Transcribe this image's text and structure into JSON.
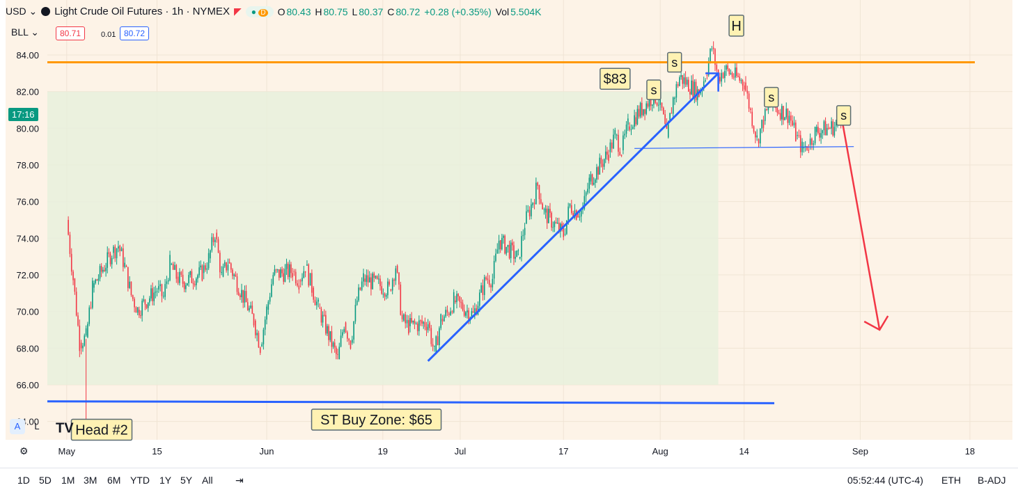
{
  "header": {
    "currency": "USD",
    "symbol_title": "Light Crude Oil Futures · 1h · NYMEX",
    "ohlc": {
      "o": "80.43",
      "h": "80.75",
      "l": "80.37",
      "c": "80.72",
      "chg": "+0.28 (+0.35%)",
      "vol": "5.504K"
    },
    "labels": {
      "o": "O",
      "h": "H",
      "l": "L",
      "c": "C",
      "vol": "Vol"
    },
    "dot_label": "D",
    "bll": "BLL",
    "sell": "80.71",
    "spread": "0.01",
    "buy": "80.72"
  },
  "price_badge": "17:16",
  "chart_data": {
    "type": "line",
    "title": "Light Crude Oil Futures · 1h · NYMEX",
    "xlabel": "",
    "ylabel": "",
    "ylim": [
      63.0,
      87.0
    ],
    "y_ticks": [
      "84.00",
      "82.00",
      "80.00",
      "78.00",
      "76.00",
      "74.00",
      "72.00",
      "70.00",
      "68.00",
      "66.00",
      "64.00"
    ],
    "x_ticks": [
      "May",
      "15",
      "Jun",
      "19",
      "Jul",
      "17",
      "Aug",
      "14",
      "Sep",
      "18"
    ],
    "series": [
      {
        "name": "",
        "values": [
          {
            "d": "2023-05-01",
            "v": 75.0
          },
          {
            "d": "2023-05-02",
            "v": 71.8
          },
          {
            "d": "2023-05-03",
            "v": 68.3
          },
          {
            "d": "2023-05-04",
            "v": 68.6
          },
          {
            "d": "2023-05-05",
            "v": 71.3
          },
          {
            "d": "2023-05-08",
            "v": 73.2
          },
          {
            "d": "2023-05-09",
            "v": 73.6
          },
          {
            "d": "2023-05-10",
            "v": 72.5
          },
          {
            "d": "2023-05-11",
            "v": 70.9
          },
          {
            "d": "2023-05-12",
            "v": 70.1
          },
          {
            "d": "2023-05-15",
            "v": 71.2
          },
          {
            "d": "2023-05-16",
            "v": 70.8
          },
          {
            "d": "2023-05-17",
            "v": 72.6
          },
          {
            "d": "2023-05-18",
            "v": 71.9
          },
          {
            "d": "2023-05-19",
            "v": 71.6
          },
          {
            "d": "2023-05-22",
            "v": 72.1
          },
          {
            "d": "2023-05-23",
            "v": 72.9
          },
          {
            "d": "2023-05-24",
            "v": 74.3
          },
          {
            "d": "2023-05-25",
            "v": 71.9
          },
          {
            "d": "2023-05-26",
            "v": 72.7
          },
          {
            "d": "2023-05-30",
            "v": 69.5
          },
          {
            "d": "2023-05-31",
            "v": 68.1
          },
          {
            "d": "2023-06-01",
            "v": 70.1
          },
          {
            "d": "2023-06-02",
            "v": 72.0
          },
          {
            "d": "2023-06-05",
            "v": 72.2
          },
          {
            "d": "2023-06-06",
            "v": 71.7
          },
          {
            "d": "2023-06-07",
            "v": 72.5
          },
          {
            "d": "2023-06-08",
            "v": 71.3
          },
          {
            "d": "2023-06-09",
            "v": 70.2
          },
          {
            "d": "2023-06-12",
            "v": 67.4
          },
          {
            "d": "2023-06-13",
            "v": 69.4
          },
          {
            "d": "2023-06-14",
            "v": 68.3
          },
          {
            "d": "2023-06-15",
            "v": 70.6
          },
          {
            "d": "2023-06-16",
            "v": 71.8
          },
          {
            "d": "2023-06-20",
            "v": 71.2
          },
          {
            "d": "2023-06-21",
            "v": 72.5
          },
          {
            "d": "2023-06-22",
            "v": 69.5
          },
          {
            "d": "2023-06-23",
            "v": 69.2
          },
          {
            "d": "2023-06-26",
            "v": 69.4
          },
          {
            "d": "2023-06-27",
            "v": 67.7
          },
          {
            "d": "2023-06-28",
            "v": 69.6
          },
          {
            "d": "2023-06-29",
            "v": 69.9
          },
          {
            "d": "2023-06-30",
            "v": 70.6
          },
          {
            "d": "2023-07-03",
            "v": 69.8
          },
          {
            "d": "2023-07-05",
            "v": 71.8
          },
          {
            "d": "2023-07-06",
            "v": 71.8
          },
          {
            "d": "2023-07-07",
            "v": 73.9
          },
          {
            "d": "2023-07-10",
            "v": 72.9
          },
          {
            "d": "2023-07-11",
            "v": 74.8
          },
          {
            "d": "2023-07-12",
            "v": 75.8
          },
          {
            "d": "2023-07-13",
            "v": 76.9
          },
          {
            "d": "2023-07-14",
            "v": 75.4
          },
          {
            "d": "2023-07-17",
            "v": 74.2
          },
          {
            "d": "2023-07-18",
            "v": 75.8
          },
          {
            "d": "2023-07-19",
            "v": 75.4
          },
          {
            "d": "2023-07-20",
            "v": 75.6
          },
          {
            "d": "2023-07-21",
            "v": 77.1
          },
          {
            "d": "2023-07-24",
            "v": 78.7
          },
          {
            "d": "2023-07-25",
            "v": 79.6
          },
          {
            "d": "2023-07-26",
            "v": 78.8
          },
          {
            "d": "2023-07-27",
            "v": 80.1
          },
          {
            "d": "2023-07-28",
            "v": 80.6
          },
          {
            "d": "2023-07-31",
            "v": 81.8
          },
          {
            "d": "2023-08-01",
            "v": 81.4
          },
          {
            "d": "2023-08-02",
            "v": 79.5
          },
          {
            "d": "2023-08-03",
            "v": 81.6
          },
          {
            "d": "2023-08-04",
            "v": 82.8
          },
          {
            "d": "2023-08-07",
            "v": 81.9
          },
          {
            "d": "2023-08-08",
            "v": 82.9
          },
          {
            "d": "2023-08-09",
            "v": 84.4
          },
          {
            "d": "2023-08-10",
            "v": 82.8
          },
          {
            "d": "2023-08-11",
            "v": 83.2
          },
          {
            "d": "2023-08-14",
            "v": 82.5
          },
          {
            "d": "2023-08-15",
            "v": 80.9
          },
          {
            "d": "2023-08-16",
            "v": 79.4
          },
          {
            "d": "2023-08-17",
            "v": 80.4
          },
          {
            "d": "2023-08-18",
            "v": 81.3
          },
          {
            "d": "2023-08-21",
            "v": 80.7
          },
          {
            "d": "2023-08-22",
            "v": 79.6
          },
          {
            "d": "2023-08-23",
            "v": 78.9
          },
          {
            "d": "2023-08-24",
            "v": 79.1
          },
          {
            "d": "2023-08-25",
            "v": 79.8
          },
          {
            "d": "2023-08-28",
            "v": 80.1
          },
          {
            "d": "2023-08-29",
            "v": 80.7
          }
        ]
      }
    ],
    "annotations": {
      "resistance_label": "$83",
      "support_label": "ST Buy Zone: $65",
      "head_label": "H",
      "shoulder_label": "s",
      "head2_label": "Head #2"
    },
    "levels": {
      "resistance": 83.6,
      "support": 65.1
    }
  },
  "bottom": {
    "timeframes": [
      "1D",
      "5D",
      "1M",
      "3M",
      "6M",
      "YTD",
      "1Y",
      "5Y",
      "All"
    ],
    "clock": "05:52:44 (UTC-4)",
    "session": "ETH",
    "adj": "B-ADJ"
  },
  "colors": {
    "bg": "#fdf3e7",
    "up": "#089981",
    "down": "#f23645",
    "orange": "#ff9800",
    "blue": "#2962ff",
    "red": "#f23645",
    "zone": "#e8f0dc"
  }
}
